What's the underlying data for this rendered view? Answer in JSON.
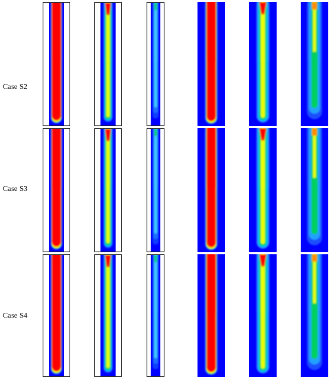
{
  "rows": [
    {
      "label": "Case S2"
    },
    {
      "label": "Case S3"
    },
    {
      "label": "Case S4"
    }
  ],
  "columns": [
    {
      "style": "framed",
      "type": "solid-core"
    },
    {
      "style": "framed",
      "type": "layered-core"
    },
    {
      "style": "framed",
      "type": "faint-core"
    },
    {
      "style": "filled",
      "type": "solid-core"
    },
    {
      "style": "filled",
      "type": "layered-core"
    },
    {
      "style": "filled",
      "type": "faint-core"
    }
  ],
  "colors": {
    "background": "#0000ff",
    "red": "#ff0000",
    "orange": "#ff8c00",
    "yellow": "#e6ff00",
    "green": "#00d060",
    "cyan": "#00bfff",
    "light_blue": "#3a6bff"
  }
}
